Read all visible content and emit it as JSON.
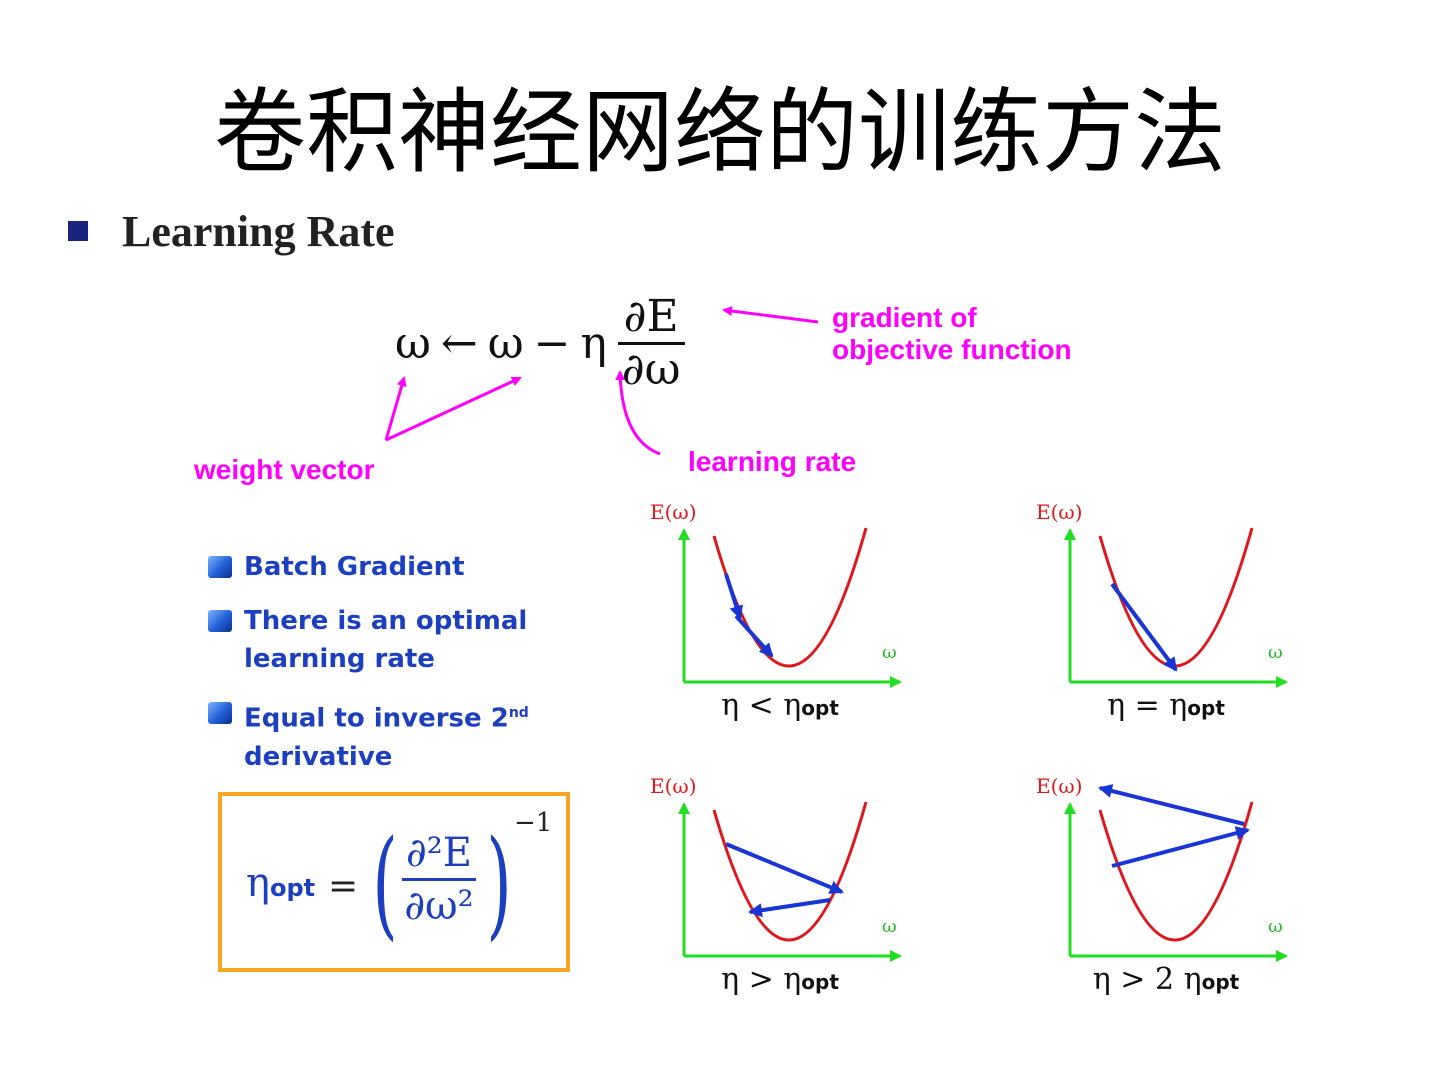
{
  "title": "卷积神经网络的训练方法",
  "bullet": {
    "text": "Learning Rate"
  },
  "formula": {
    "lhs": "ω",
    "arrow": "←",
    "w": "ω",
    "minus": "−",
    "eta": "η",
    "numerator": "∂E",
    "denominator": "∂ω"
  },
  "annotations": {
    "gradient_line1": "gradient of",
    "gradient_line2": "objective function",
    "weight_vector": "weight vector",
    "learning_rate": "learning rate",
    "color": "#ff00ff"
  },
  "notes": [
    {
      "lines": [
        "Batch Gradient"
      ]
    },
    {
      "lines": [
        "There is an optimal",
        "learning rate"
      ]
    },
    {
      "line1": "Equal to inverse 2",
      "sup": "nd",
      "line2": "derivative"
    }
  ],
  "optimal_formula": {
    "eta": "η",
    "subscript": "opt",
    "equals": "=",
    "open_paren": "(",
    "close_paren": ")",
    "numerator": "∂²E",
    "denominator": "∂ω²",
    "exponent": "−1",
    "border_color": "#f5a623"
  },
  "graphs": [
    {
      "y_label": "E(ω)",
      "x_label": "ω",
      "caption_main": "η < η",
      "caption_sub": "opt"
    },
    {
      "y_label": "E(ω)",
      "x_label": "ω",
      "caption_main": "η = η",
      "caption_sub": "opt"
    },
    {
      "y_label": "E(ω)",
      "x_label": "ω",
      "caption_main": "η > η",
      "caption_sub": "opt"
    },
    {
      "y_label": "E(ω)",
      "x_label": "ω",
      "caption_main": "η > 2 η",
      "caption_sub": "opt"
    }
  ],
  "colors": {
    "curve": "#e0161a",
    "axes": "#22dd22",
    "step_arrows": "#1a35d6",
    "note_text": "#1c3fbf"
  }
}
